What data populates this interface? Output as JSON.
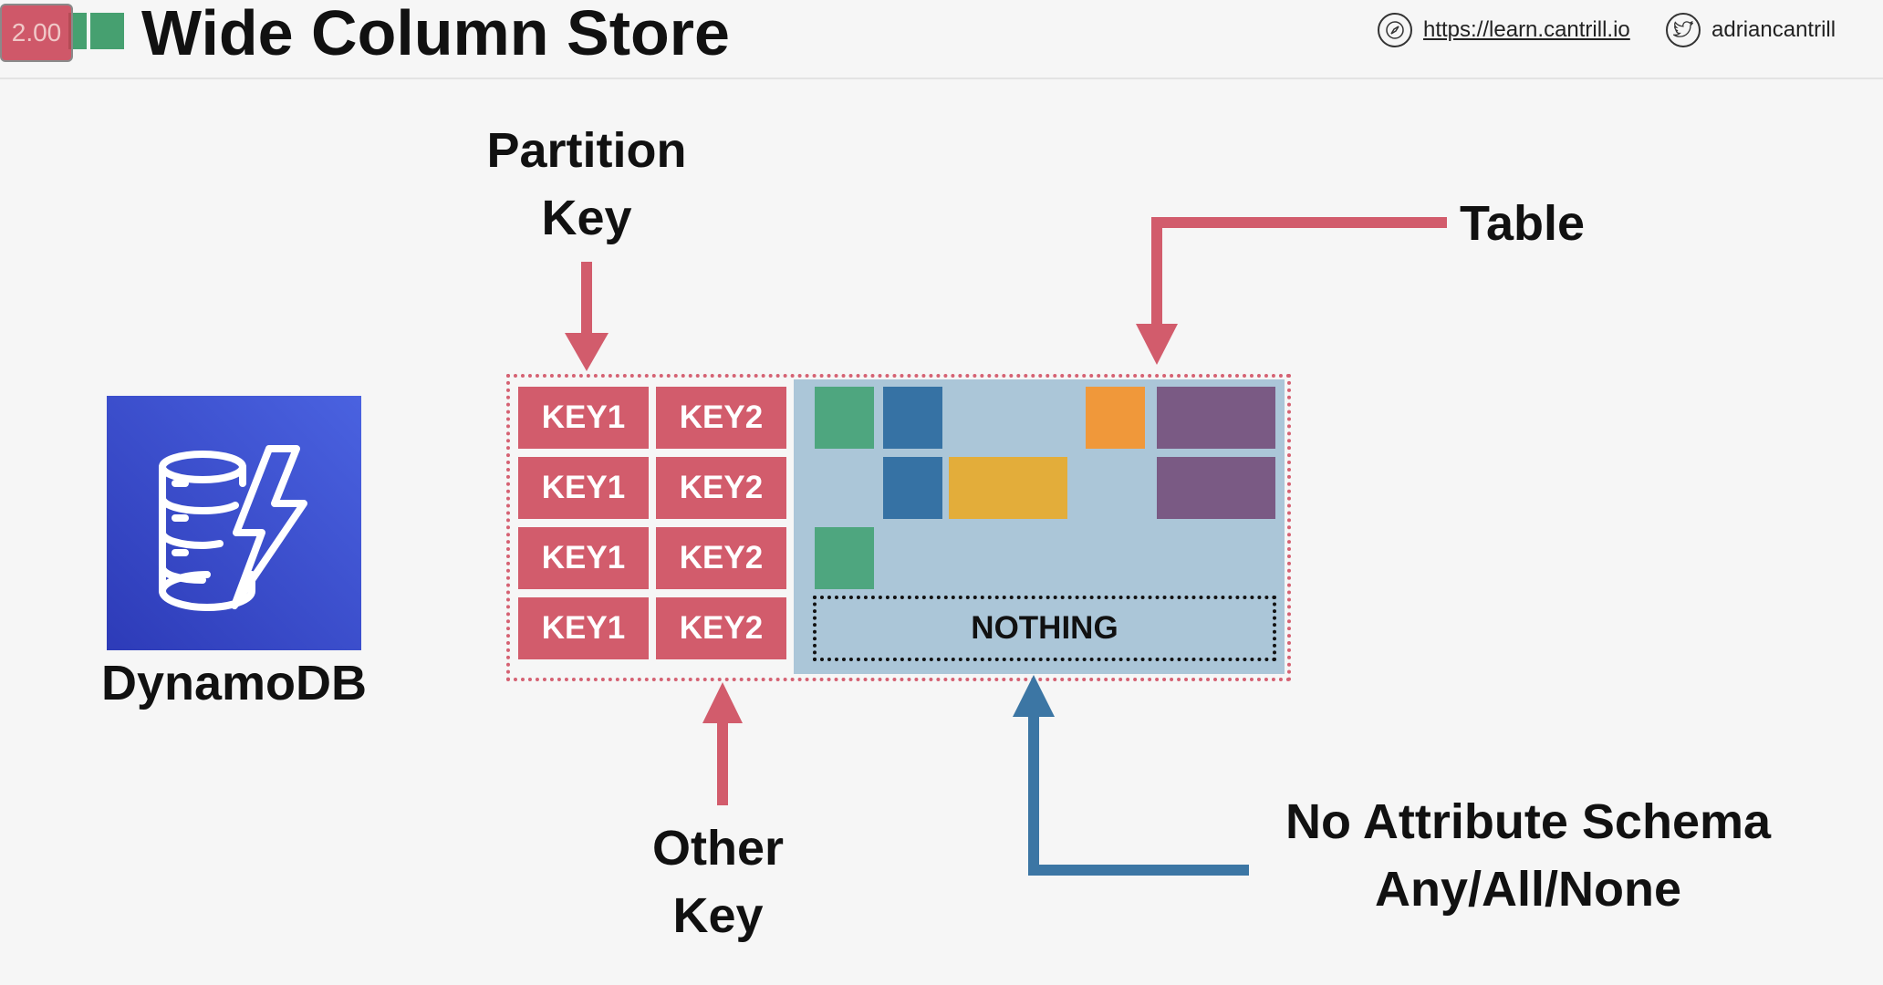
{
  "header": {
    "title": "Wide Column Store",
    "speed": "2.00",
    "website_url": "https://learn.cantrill.io",
    "twitter_handle": "adriancantrill"
  },
  "logo": {
    "service_name": "DynamoDB"
  },
  "labels": {
    "partition_key_line1": "Partition",
    "partition_key_line2": "Key",
    "table": "Table",
    "other_key_line1": "Other",
    "other_key_line2": "Key",
    "no_schema_line1": "No Attribute Schema",
    "no_schema_line2": "Any/All/None"
  },
  "table": {
    "rows": [
      {
        "key1": "KEY1",
        "key2": "KEY2"
      },
      {
        "key1": "KEY1",
        "key2": "KEY2"
      },
      {
        "key1": "KEY1",
        "key2": "KEY2"
      },
      {
        "key1": "KEY1",
        "key2": "KEY2"
      }
    ],
    "empty_row_label": "NOTHING"
  },
  "colors": {
    "key_red": "#d25c6c",
    "attr_green": "#4ea67f",
    "attr_blue": "#3672a4",
    "attr_orange": "#f0983a",
    "attr_yellow": "#e3ad3a",
    "attr_purple": "#7a5a84",
    "arrow_blue": "#3c76a4"
  }
}
